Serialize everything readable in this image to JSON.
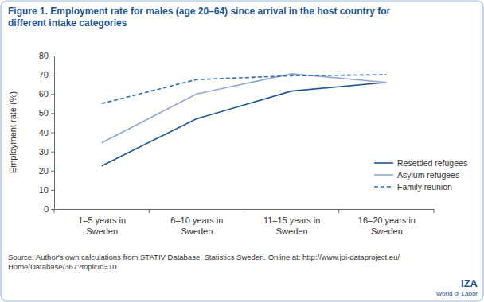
{
  "chart_data": {
    "type": "line",
    "title": "Figure 1. Employment rate for males (age 20–64) since arrival in the host country for\ndifferent intake categories",
    "ylabel": "Employment rate (%)",
    "source": "Source: Author's own calculations from STATIV Database, Statistics Sweden. Online at: http://www.jpi-dataproject.eu/\nHome/Database/367?topicId=10",
    "annotations": [
      "IZA",
      "World of Labor"
    ],
    "categories": [
      "1–5 years in\nSweden",
      "6–10 years in\nSweden",
      "11–15 years in\nSweden",
      "16–20 years in\nSweden"
    ],
    "series": [
      {
        "name": "Resettled refugees",
        "color": "#1f5596",
        "line_style": "solid",
        "values": [
          22.5,
          47,
          61.5,
          66
        ]
      },
      {
        "name": "Asylum refugees",
        "color": "#8ea8c9",
        "line_style": "solid",
        "values": [
          34.5,
          60,
          70.5,
          66
        ]
      },
      {
        "name": "Family reunion",
        "color": "#2e6db4",
        "line_style": "dashed",
        "values": [
          55,
          67.5,
          69.5,
          70
        ]
      }
    ],
    "ylim": [
      0,
      80
    ],
    "yticks": [
      0,
      10,
      20,
      30,
      40,
      50,
      60,
      70,
      80
    ],
    "grid": false,
    "legend": "lower right"
  }
}
